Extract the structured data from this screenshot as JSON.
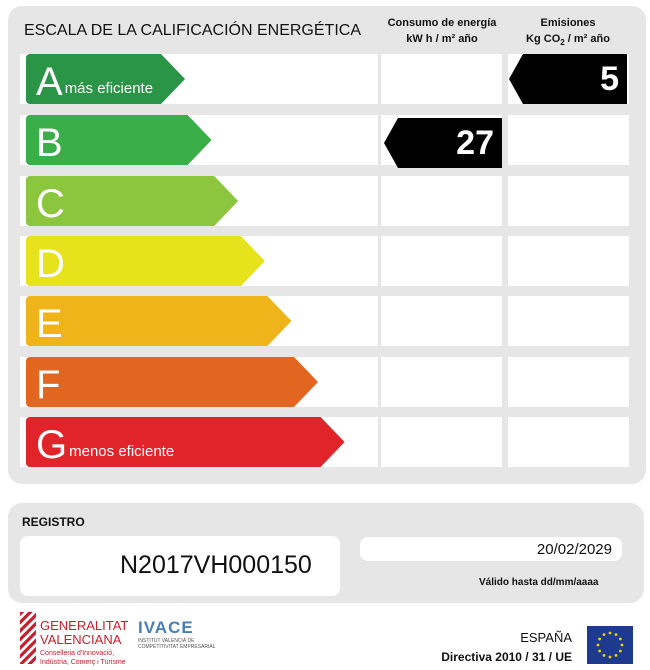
{
  "title": "ESCALA DE LA CALIFICACIÓN ENERGÉTICA",
  "consumo": {
    "label": "Consumo de energía",
    "unit": "kW h / m² año",
    "rating": "B",
    "value": "27"
  },
  "emisiones": {
    "label": "Emisiones",
    "unit_pre": "Kg CO",
    "unit_sub": "2",
    "unit_post": " / m² año",
    "rating": "A",
    "value": "5"
  },
  "grades": [
    {
      "letter": "A",
      "sub": "más eficiente",
      "color": "#2a9447"
    },
    {
      "letter": "B",
      "sub": "",
      "color": "#3aae49"
    },
    {
      "letter": "C",
      "sub": "",
      "color": "#8cc63f"
    },
    {
      "letter": "D",
      "sub": "",
      "color": "#e6e31c"
    },
    {
      "letter": "E",
      "sub": "",
      "color": "#f0b41b"
    },
    {
      "letter": "F",
      "sub": "",
      "color": "#e2661f"
    },
    {
      "letter": "G",
      "sub": "menos eficiente",
      "color": "#e0242a"
    }
  ],
  "registro": {
    "label": "REGISTRO",
    "number": "N2017VH000150",
    "date": "20/02/2029",
    "valid_label": "Válido hasta dd/mm/aaaa"
  },
  "footer": {
    "gv1": "GENERALITAT",
    "gv2": "VALENCIANA",
    "gv3": "Conselleria d'Innovació,",
    "gv4": "Indústria, Comerç i Turisme",
    "ivace": "IVACE",
    "ivace_sub1": "INSTITUT VALENCIÀ DE",
    "ivace_sub2": "COMPETITIVITAT EMPRESARIAL",
    "country": "ESPAÑA",
    "directive": "Directiva 2010 / 31 / UE"
  }
}
